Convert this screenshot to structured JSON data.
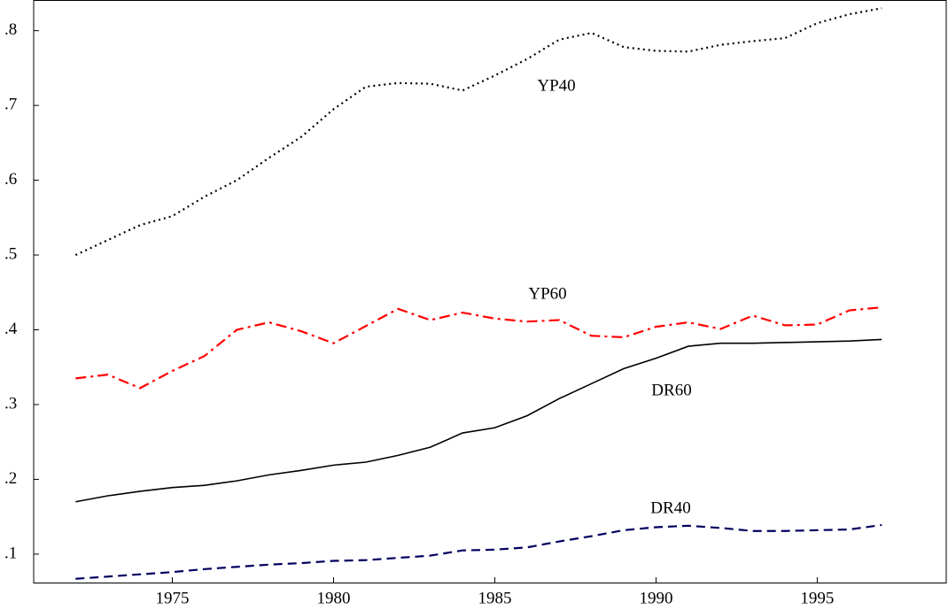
{
  "chart_data": {
    "type": "line",
    "x": [
      1972,
      1973,
      1974,
      1975,
      1976,
      1977,
      1978,
      1979,
      1980,
      1981,
      1982,
      1983,
      1984,
      1985,
      1986,
      1987,
      1988,
      1989,
      1990,
      1991,
      1992,
      1993,
      1994,
      1995,
      1996,
      1997
    ],
    "series": [
      {
        "name": "YP40",
        "color": "#000000",
        "dash": "dotted",
        "values": [
          0.5,
          0.52,
          0.54,
          0.552,
          0.578,
          0.6,
          0.63,
          0.658,
          0.695,
          0.725,
          0.73,
          0.729,
          0.72,
          0.74,
          0.762,
          0.788,
          0.797,
          0.778,
          0.773,
          0.772,
          0.781,
          0.786,
          0.79,
          0.81,
          0.822,
          0.83
        ]
      },
      {
        "name": "YP60",
        "color": "#ff0000",
        "dash": "dashdot",
        "values": [
          0.335,
          0.34,
          0.322,
          0.345,
          0.365,
          0.4,
          0.41,
          0.398,
          0.382,
          0.405,
          0.428,
          0.413,
          0.423,
          0.415,
          0.411,
          0.413,
          0.392,
          0.39,
          0.404,
          0.41,
          0.401,
          0.419,
          0.406,
          0.407,
          0.426,
          0.43
        ]
      },
      {
        "name": "DR60",
        "color": "#000000",
        "dash": "solid",
        "values": [
          0.17,
          0.178,
          0.184,
          0.189,
          0.192,
          0.198,
          0.206,
          0.212,
          0.219,
          0.223,
          0.232,
          0.243,
          0.262,
          0.269,
          0.285,
          0.308,
          0.328,
          0.348,
          0.362,
          0.378,
          0.382,
          0.382,
          0.383,
          0.384,
          0.385,
          0.387
        ]
      },
      {
        "name": "DR40",
        "color": "#000060",
        "dash": "dashed",
        "values": [
          0.067,
          0.07,
          0.073,
          0.076,
          0.08,
          0.083,
          0.086,
          0.088,
          0.091,
          0.092,
          0.095,
          0.098,
          0.105,
          0.106,
          0.109,
          0.117,
          0.124,
          0.132,
          0.136,
          0.138,
          0.135,
          0.131,
          0.131,
          0.132,
          0.133,
          0.139
        ]
      }
    ],
    "xlim": [
      1970.7,
      1999.0
    ],
    "xticks": [
      1975,
      1980,
      1985,
      1990,
      1995
    ],
    "ylim": [
      0.062,
      0.841
    ],
    "yticks": [
      {
        "value": 0.1,
        "label": ".1"
      },
      {
        "value": 0.2,
        "label": ".2"
      },
      {
        "value": 0.3,
        "label": ".3"
      },
      {
        "value": 0.4,
        "label": ".4"
      },
      {
        "value": 0.5,
        "label": ".5"
      },
      {
        "value": 0.6,
        "label": ".6"
      },
      {
        "value": 0.7,
        "label": ".7"
      },
      {
        "value": 0.8,
        "label": ".8"
      }
    ]
  }
}
